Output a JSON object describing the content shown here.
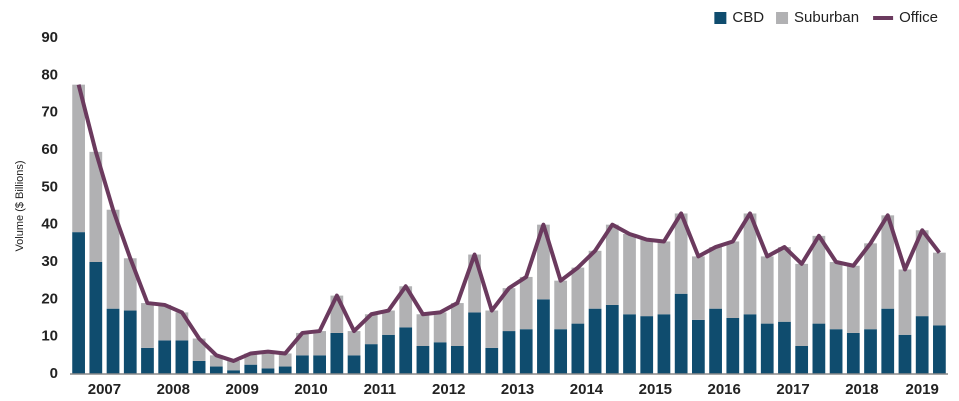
{
  "chart_data": {
    "type": "stacked_bar_line",
    "y_axis_label": "Volume ($ Billions)",
    "categories": [
      "2007",
      null,
      null,
      null,
      "2008",
      null,
      null,
      null,
      "2009",
      null,
      null,
      null,
      "2010",
      null,
      null,
      null,
      "2011",
      null,
      null,
      null,
      "2012",
      null,
      null,
      null,
      "2013",
      null,
      null,
      null,
      "2014",
      null,
      null,
      null,
      "2015",
      null,
      null,
      null,
      "2016",
      null,
      null,
      null,
      "2017",
      null,
      null,
      null,
      "2018",
      null,
      null,
      null,
      "2019",
      null,
      null
    ],
    "series": [
      {
        "name": "CBD",
        "color": "#0f4c6e",
        "kind": "bar",
        "values": [
          38,
          30,
          17.5,
          17,
          7,
          9,
          9,
          3.5,
          2,
          1,
          2.5,
          1.5,
          2,
          5,
          5,
          11,
          5,
          8,
          10.5,
          12.5,
          7.5,
          8.5,
          7.5,
          16.5,
          7,
          11.5,
          12,
          20,
          12,
          13.5,
          17.5,
          18.5,
          16,
          15.5,
          16,
          21.5,
          14.5,
          17.5,
          15,
          16,
          13.5,
          14,
          7.5,
          13.5,
          12,
          11,
          12,
          17.5,
          10.5,
          15.5,
          13
        ]
      },
      {
        "name": "Suburban",
        "color": "#b1b1b3",
        "kind": "bar",
        "values": [
          39.5,
          29.5,
          26.5,
          14,
          12,
          9.5,
          7.5,
          6,
          3,
          2.5,
          3,
          4.5,
          3.5,
          6,
          6.5,
          10,
          6.5,
          8,
          6.5,
          11,
          8.5,
          8,
          11.5,
          15.5,
          10,
          11.5,
          14,
          20,
          13,
          15,
          15.5,
          21.5,
          21.5,
          20.5,
          19.5,
          21.5,
          17,
          16.5,
          20.5,
          27,
          18,
          20,
          22,
          23.5,
          18,
          18,
          23,
          25,
          17.5,
          23,
          19.5
        ]
      },
      {
        "name": "Office",
        "color": "#6b3a5e",
        "kind": "line",
        "values": [
          77.5,
          59.5,
          44,
          31,
          19,
          18.5,
          16.5,
          9.5,
          5,
          3.5,
          5.5,
          6,
          5.5,
          11,
          11.5,
          21,
          11.5,
          16,
          17,
          23.5,
          16,
          16.5,
          19,
          32,
          17,
          23,
          26,
          40,
          25,
          28.5,
          33,
          40,
          37.5,
          36,
          35.5,
          43,
          31.5,
          34,
          35.5,
          43,
          31.5,
          34,
          29.5,
          37,
          30,
          29,
          35,
          42.5,
          28,
          38.5,
          32.5
        ]
      }
    ],
    "ylim": [
      0,
      90
    ],
    "yticks": [
      0,
      10,
      20,
      30,
      40,
      50,
      60,
      70,
      80,
      90
    ],
    "grid": false,
    "legend": "top-right"
  }
}
